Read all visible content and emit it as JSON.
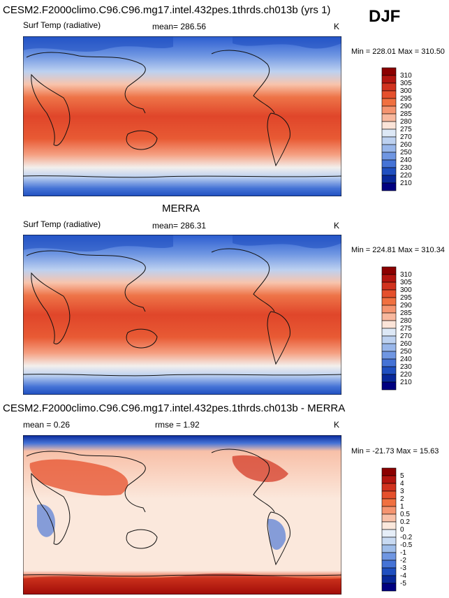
{
  "season": "DJF",
  "chart_data": [
    {
      "type": "heatmap",
      "id": "model",
      "title": "CESM2.F2000climo.C96.C96.mg17.intel.432pes.1thrds.ch013b (yrs 1)",
      "variable": "Surf Temp (radiative)",
      "stat_label": "mean= 286.56",
      "units": "K",
      "min_max": "Min = 228.01 Max = 310.50",
      "colorbar_levels": [
        "310",
        "305",
        "300",
        "295",
        "290",
        "285",
        "280",
        "275",
        "270",
        "260",
        "250",
        "240",
        "230",
        "220",
        "210"
      ],
      "colorbar_colors": [
        "#8b0000",
        "#b3150f",
        "#d1321e",
        "#e5502c",
        "#f07040",
        "#f59470",
        "#f8b89e",
        "#fbe4d8",
        "#dde8f6",
        "#bdd1f0",
        "#98b6ea",
        "#6f96e2",
        "#4573d6",
        "#1f4fc0",
        "#08289a",
        "#000080"
      ]
    },
    {
      "type": "heatmap",
      "id": "obs",
      "title": "MERRA",
      "variable": "Surf Temp (radiative)",
      "stat_label": "mean= 286.31",
      "units": "K",
      "min_max": "Min = 224.81 Max = 310.34",
      "colorbar_levels": [
        "310",
        "305",
        "300",
        "295",
        "290",
        "285",
        "280",
        "275",
        "270",
        "260",
        "250",
        "240",
        "230",
        "220",
        "210"
      ],
      "colorbar_colors": [
        "#8b0000",
        "#b3150f",
        "#d1321e",
        "#e5502c",
        "#f07040",
        "#f59470",
        "#f8b89e",
        "#fbe4d8",
        "#dde8f6",
        "#bdd1f0",
        "#98b6ea",
        "#6f96e2",
        "#4573d6",
        "#1f4fc0",
        "#08289a",
        "#000080"
      ]
    },
    {
      "type": "heatmap",
      "id": "diff",
      "title": "CESM2.F2000climo.C96.C96.mg17.intel.432pes.1thrds.ch013b - MERRA",
      "variable": "mean =  0.26",
      "stat_label": "rmse =   1.92",
      "units": "K",
      "min_max": "Min = -21.73 Max =  15.63",
      "colorbar_levels": [
        "5",
        "4",
        "3",
        "2",
        "1",
        "0.5",
        "0.2",
        "0",
        "-0.2",
        "-0.5",
        "-1",
        "-2",
        "-3",
        "-4",
        "-5"
      ],
      "colorbar_colors": [
        "#8b0000",
        "#b3150f",
        "#d1321e",
        "#e5502c",
        "#f07040",
        "#f59470",
        "#f8c0a8",
        "#fbe8dc",
        "#e6eef8",
        "#c8daf2",
        "#9fbde9",
        "#6f96e2",
        "#4573d6",
        "#1f4fc0",
        "#08289a",
        "#000080"
      ]
    }
  ]
}
